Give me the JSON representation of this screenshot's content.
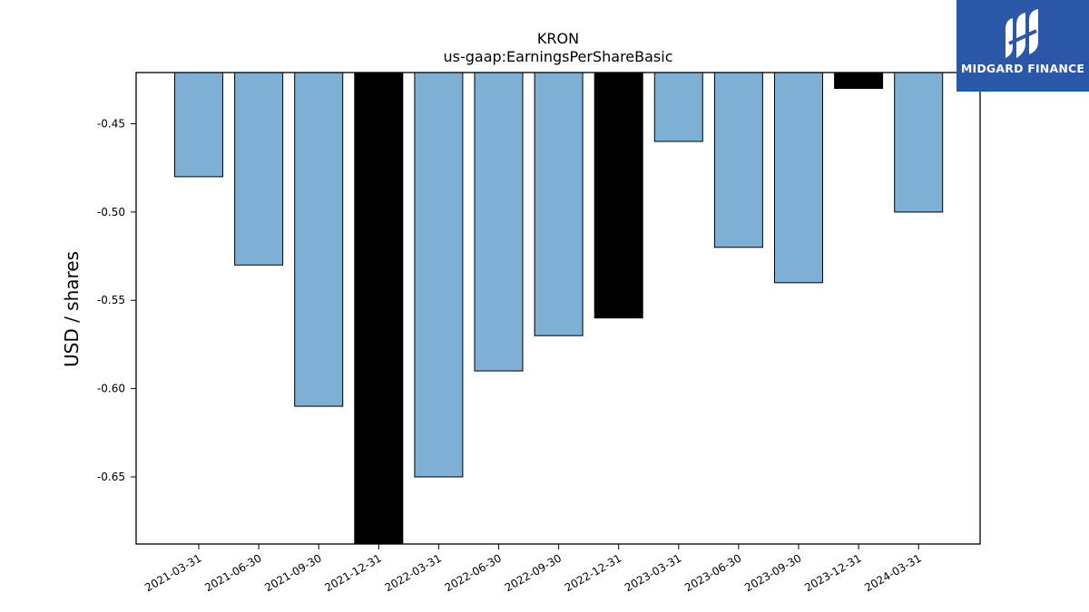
{
  "chart_data": {
    "type": "bar",
    "title": "KRON",
    "subtitle": "us-gaap:EarningsPerShareBasic",
    "xlabel": "",
    "ylabel": "USD / shares",
    "ylim": [
      -0.688,
      -0.421
    ],
    "yticks": [
      -0.45,
      -0.5,
      -0.55,
      -0.6,
      -0.65
    ],
    "ytick_labels": [
      "-0.45",
      "-0.50",
      "-0.55",
      "-0.60",
      "-0.65"
    ],
    "categories": [
      "2021-03-31",
      "2021-06-30",
      "2021-09-30",
      "2021-12-31",
      "2022-03-31",
      "2022-06-30",
      "2022-09-30",
      "2022-12-31",
      "2023-03-31",
      "2023-06-30",
      "2023-09-30",
      "2023-12-31",
      "2024-03-31"
    ],
    "values": [
      -0.48,
      -0.53,
      -0.61,
      -0.69,
      -0.65,
      -0.59,
      -0.57,
      -0.56,
      -0.46,
      -0.52,
      -0.54,
      -0.43,
      -0.5
    ],
    "bar_colors": [
      "#7eb0d5",
      "#7eb0d5",
      "#7eb0d5",
      "#000000",
      "#7eb0d5",
      "#7eb0d5",
      "#7eb0d5",
      "#000000",
      "#7eb0d5",
      "#7eb0d5",
      "#7eb0d5",
      "#000000",
      "#7eb0d5"
    ],
    "grid": false,
    "legend": "none"
  },
  "logo": {
    "text": "MIDGARD FINANCE",
    "background": "#2b57a8"
  }
}
